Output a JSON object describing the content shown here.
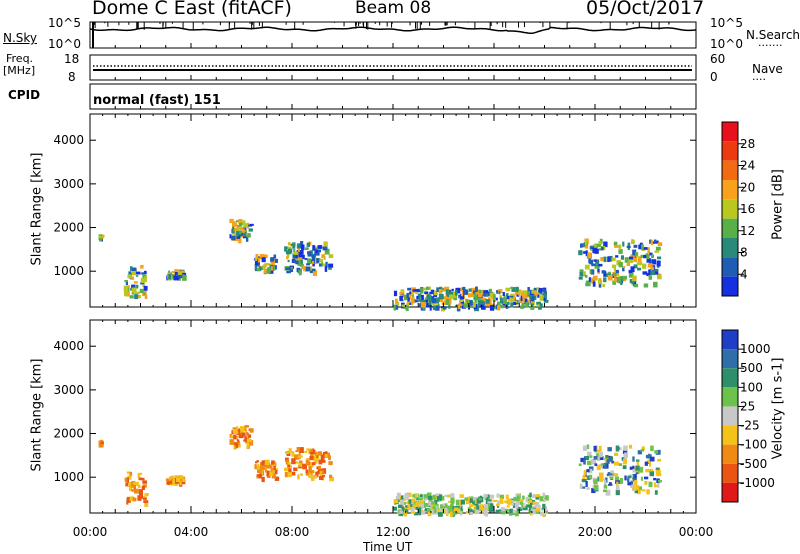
{
  "header": {
    "station": "Dome C East (fitACF)",
    "beam": "Beam 08",
    "date": "05/Oct/2017"
  },
  "top_panel": {
    "left_label": "N.Sky",
    "left_ticks": [
      "10^5",
      "10^0"
    ],
    "right_ticks": [
      "10^5",
      "10^0"
    ],
    "right_label": "N.Search",
    "right_label_marker": "......."
  },
  "freq_panel": {
    "left_label_line1": "Freq.",
    "left_label_line2": "[MHz]",
    "left_ticks": [
      "18",
      "8"
    ],
    "right_ticks": [
      "60",
      "0"
    ],
    "right_label": "Nave",
    "right_label_marker": "...."
  },
  "cpid": {
    "label": "CPID",
    "value": "normal (fast) 151"
  },
  "range_axis": {
    "label": "Slant Range [km]",
    "ticks": [
      "4000",
      "3000",
      "2000",
      "1000"
    ]
  },
  "time_axis": {
    "label": "Time UT",
    "ticks": [
      "00:00",
      "04:00",
      "08:00",
      "12:00",
      "16:00",
      "20:00",
      "00:00"
    ]
  },
  "power_scale": {
    "label": "Power [dB]",
    "ticks": [
      "28",
      "24",
      "20",
      "16",
      "12",
      "8",
      "4"
    ],
    "colors": [
      "#e8101a",
      "#ee3a10",
      "#f26a12",
      "#f7a21a",
      "#b8c820",
      "#5ab048",
      "#2a8a7a",
      "#1f5cb4",
      "#1430e0"
    ]
  },
  "velocity_scale": {
    "label": "Velocity [m s-1]",
    "ticks": [
      "1000",
      "500",
      "100",
      "25",
      "-25",
      "-100",
      "-500",
      "-1000"
    ],
    "colors": [
      "#1e3ec8",
      "#2f6ea8",
      "#2e8f6a",
      "#6cc24a",
      "#c8c8c8",
      "#f5c21a",
      "#f08a14",
      "#ea5514",
      "#e01818"
    ]
  },
  "chart_data": {
    "type": "heatmap",
    "x_range_hours": [
      0,
      24
    ],
    "y_range_km": [
      180,
      4600
    ],
    "panels": [
      "Power [dB]",
      "Velocity [m s-1]"
    ],
    "echo_regions": [
      {
        "t_start": "00:20",
        "t_end": "00:25",
        "range_km": [
          1780,
          1860
        ]
      },
      {
        "t_start": "01:20",
        "t_end": "02:10",
        "range_km": [
          450,
          1150
        ]
      },
      {
        "t_start": "03:00",
        "t_end": "03:40",
        "range_km": [
          900,
          1050
        ]
      },
      {
        "t_start": "05:30",
        "t_end": "06:20",
        "range_km": [
          1750,
          2200
        ]
      },
      {
        "t_start": "06:30",
        "t_end": "07:20",
        "range_km": [
          1000,
          1400
        ]
      },
      {
        "t_start": "07:40",
        "t_end": "09:30",
        "range_km": [
          1000,
          1700
        ]
      },
      {
        "t_start": "12:00",
        "t_end": "18:00",
        "range_km": [
          200,
          650
        ]
      },
      {
        "t_start": "19:20",
        "t_end": "22:30",
        "range_km": [
          700,
          1750
        ]
      }
    ]
  }
}
